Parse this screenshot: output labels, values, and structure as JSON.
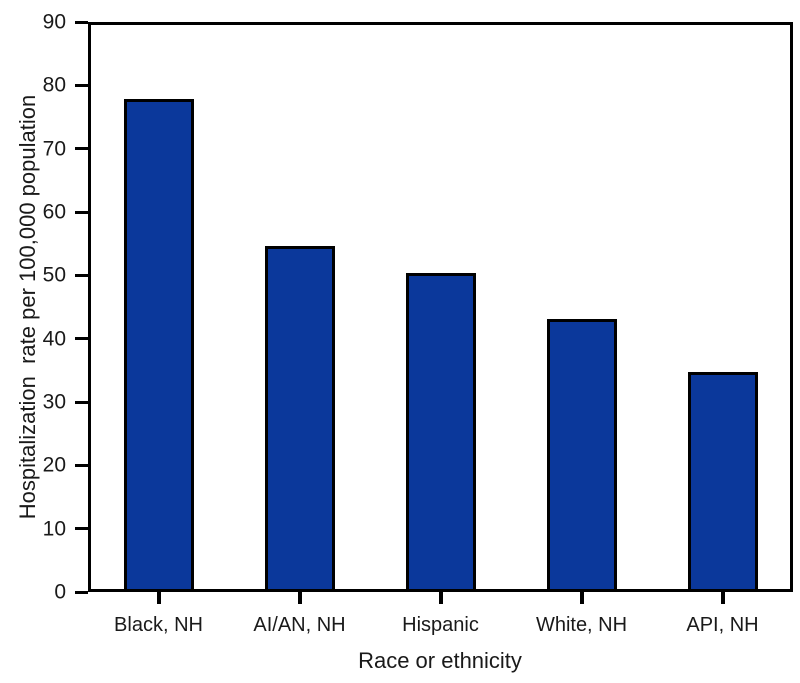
{
  "chart_data": {
    "type": "bar",
    "title": "",
    "categories": [
      "Black, NH",
      "AI/AN, NH",
      "Hispanic",
      "White, NH",
      "API, NH"
    ],
    "values": [
      78.2,
      54.7,
      50.4,
      43.1,
      34.6
    ],
    "xlabel": "Race or ethnicity",
    "ylabel": "Hospitalization  rate per 100,000 population",
    "ylim": [
      0,
      90
    ],
    "yticks": [
      0,
      10,
      20,
      30,
      40,
      50,
      60,
      70,
      80,
      90
    ],
    "grid": false,
    "legend": "none",
    "frame": "full-box",
    "colors": {
      "bar_fill": "#0b389b",
      "bar_border": "#000000",
      "axis": "#000000",
      "background": "#ffffff"
    }
  }
}
